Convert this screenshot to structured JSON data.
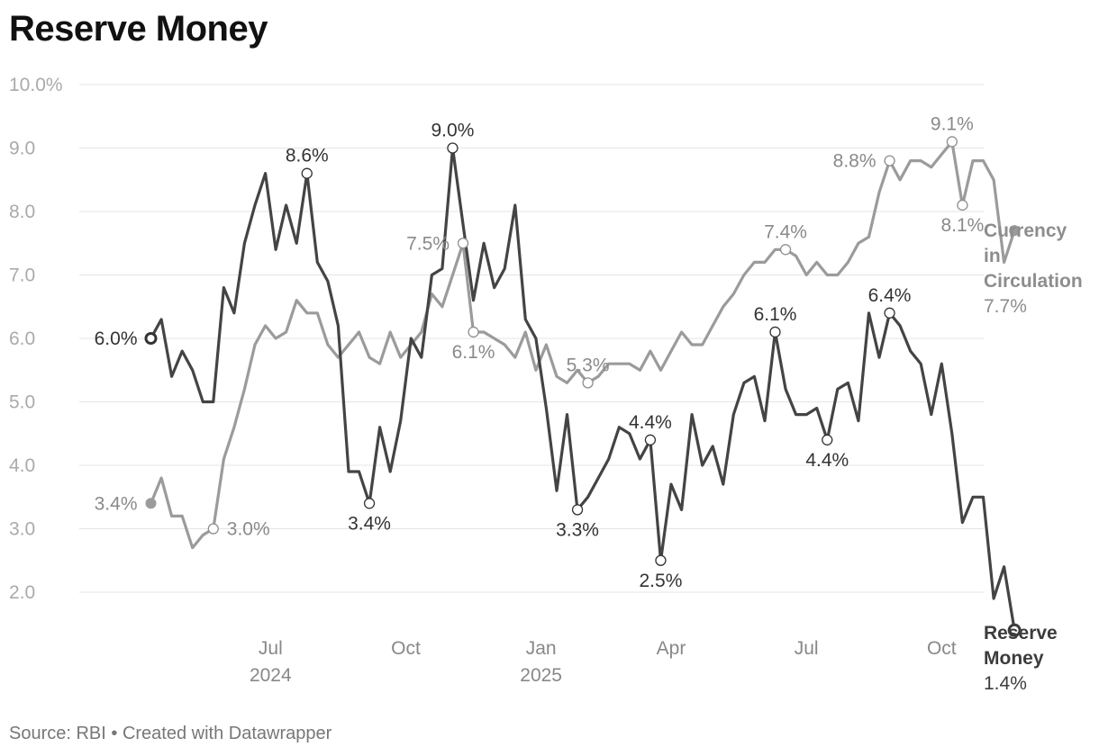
{
  "page": {
    "title": "Reserve Money",
    "source": "Source: RBI • Created with Datawrapper"
  },
  "chart_data": {
    "type": "line",
    "title": "Reserve Money",
    "ylim": [
      1.5,
      10
    ],
    "yticks": [
      2,
      3,
      4,
      5,
      6,
      7,
      8,
      9,
      10
    ],
    "ytick_labels": [
      "2.0",
      "3.0",
      "4.0",
      "5.0",
      "6.0",
      "7.0",
      "8.0",
      "9.0",
      "10.0%"
    ],
    "grid": true,
    "x_axis": {
      "unit": "weeks since start of series (mid-Mar 2024)",
      "range": [
        0,
        86
      ],
      "ticks": [
        {
          "x": 11.5,
          "label": "Jul",
          "year": "2024"
        },
        {
          "x": 24.5,
          "label": "Oct",
          "year": ""
        },
        {
          "x": 37.5,
          "label": "Jan",
          "year": "2025"
        },
        {
          "x": 50,
          "label": "Apr",
          "year": ""
        },
        {
          "x": 63,
          "label": "Jul",
          "year": ""
        },
        {
          "x": 76,
          "label": "Oct",
          "year": ""
        }
      ]
    },
    "series": [
      {
        "name": "Currency in Circulation",
        "name_lines": [
          "Currency",
          "in",
          "Circulation"
        ],
        "last_label": "7.7%",
        "color": "#9b9b9b",
        "points": [
          [
            0,
            3.4
          ],
          [
            1,
            3.8
          ],
          [
            2,
            3.2
          ],
          [
            3,
            3.2
          ],
          [
            4,
            2.7
          ],
          [
            5,
            2.9
          ],
          [
            6,
            3.0
          ],
          [
            7,
            4.1
          ],
          [
            8,
            4.6
          ],
          [
            9,
            5.2
          ],
          [
            10,
            5.9
          ],
          [
            11,
            6.2
          ],
          [
            12,
            6.0
          ],
          [
            13,
            6.1
          ],
          [
            14,
            6.6
          ],
          [
            15,
            6.4
          ],
          [
            16,
            6.4
          ],
          [
            17,
            5.9
          ],
          [
            18,
            5.7
          ],
          [
            19,
            5.9
          ],
          [
            20,
            6.1
          ],
          [
            21,
            5.7
          ],
          [
            22,
            5.6
          ],
          [
            23,
            6.1
          ],
          [
            24,
            5.7
          ],
          [
            25,
            5.9
          ],
          [
            26,
            6.1
          ],
          [
            27,
            6.7
          ],
          [
            28,
            6.5
          ],
          [
            29,
            7.0
          ],
          [
            30,
            7.5
          ],
          [
            31,
            6.1
          ],
          [
            32,
            6.1
          ],
          [
            33,
            6.0
          ],
          [
            34,
            5.9
          ],
          [
            35,
            5.7
          ],
          [
            36,
            6.1
          ],
          [
            37,
            5.5
          ],
          [
            38,
            5.9
          ],
          [
            39,
            5.4
          ],
          [
            40,
            5.3
          ],
          [
            41,
            5.5
          ],
          [
            42,
            5.3
          ],
          [
            43,
            5.4
          ],
          [
            44,
            5.6
          ],
          [
            45,
            5.6
          ],
          [
            46,
            5.6
          ],
          [
            47,
            5.5
          ],
          [
            48,
            5.8
          ],
          [
            49,
            5.5
          ],
          [
            50,
            5.8
          ],
          [
            51,
            6.1
          ],
          [
            52,
            5.9
          ],
          [
            53,
            5.9
          ],
          [
            54,
            6.2
          ],
          [
            55,
            6.5
          ],
          [
            56,
            6.7
          ],
          [
            57,
            7.0
          ],
          [
            58,
            7.2
          ],
          [
            59,
            7.2
          ],
          [
            60,
            7.4
          ],
          [
            61,
            7.4
          ],
          [
            62,
            7.3
          ],
          [
            63,
            7.0
          ],
          [
            64,
            7.2
          ],
          [
            65,
            7.0
          ],
          [
            66,
            7.0
          ],
          [
            67,
            7.2
          ],
          [
            68,
            7.5
          ],
          [
            69,
            7.6
          ],
          [
            70,
            8.3
          ],
          [
            71,
            8.8
          ],
          [
            72,
            8.5
          ],
          [
            73,
            8.8
          ],
          [
            74,
            8.8
          ],
          [
            75,
            8.7
          ],
          [
            76,
            8.9
          ],
          [
            77,
            9.1
          ],
          [
            78,
            8.1
          ],
          [
            79,
            8.8
          ],
          [
            80,
            8.8
          ],
          [
            81,
            8.5
          ],
          [
            82,
            7.2
          ],
          [
            83,
            7.7
          ]
        ],
        "annotations": [
          {
            "x": 0,
            "y": 3.4,
            "label": "3.4%",
            "pos": "left"
          },
          {
            "x": 6,
            "y": 3.0,
            "label": "3.0%",
            "pos": "right"
          },
          {
            "x": 30,
            "y": 7.5,
            "label": "7.5%",
            "pos": "left"
          },
          {
            "x": 31,
            "y": 6.1,
            "label": "6.1%",
            "pos": "below"
          },
          {
            "x": 42,
            "y": 5.3,
            "label": "5.3%",
            "pos": "above"
          },
          {
            "x": 61,
            "y": 7.4,
            "label": "7.4%",
            "pos": "above"
          },
          {
            "x": 71,
            "y": 8.8,
            "label": "8.8%",
            "pos": "left"
          },
          {
            "x": 77,
            "y": 9.1,
            "label": "9.1%",
            "pos": "above"
          },
          {
            "x": 78,
            "y": 8.1,
            "label": "8.1%",
            "pos": "below"
          }
        ]
      },
      {
        "name": "Reserve Money",
        "name_lines": [
          "Reserve",
          "Money"
        ],
        "last_label": "1.4%",
        "color": "#444444",
        "points": [
          [
            0,
            6.0
          ],
          [
            1,
            6.3
          ],
          [
            2,
            5.4
          ],
          [
            3,
            5.8
          ],
          [
            4,
            5.5
          ],
          [
            5,
            5.0
          ],
          [
            6,
            5.0
          ],
          [
            7,
            6.8
          ],
          [
            8,
            6.4
          ],
          [
            9,
            7.5
          ],
          [
            10,
            8.1
          ],
          [
            11,
            8.6
          ],
          [
            12,
            7.4
          ],
          [
            13,
            8.1
          ],
          [
            14,
            7.5
          ],
          [
            15,
            8.6
          ],
          [
            16,
            7.2
          ],
          [
            17,
            6.9
          ],
          [
            18,
            6.2
          ],
          [
            19,
            3.9
          ],
          [
            20,
            3.9
          ],
          [
            21,
            3.4
          ],
          [
            22,
            4.6
          ],
          [
            23,
            3.9
          ],
          [
            24,
            4.7
          ],
          [
            25,
            6.0
          ],
          [
            26,
            5.7
          ],
          [
            27,
            7.0
          ],
          [
            28,
            7.1
          ],
          [
            29,
            9.0
          ],
          [
            30,
            7.8
          ],
          [
            31,
            6.6
          ],
          [
            32,
            7.5
          ],
          [
            33,
            6.8
          ],
          [
            34,
            7.1
          ],
          [
            35,
            8.1
          ],
          [
            36,
            6.3
          ],
          [
            37,
            6.0
          ],
          [
            38,
            4.9
          ],
          [
            39,
            3.6
          ],
          [
            40,
            4.8
          ],
          [
            41,
            3.3
          ],
          [
            42,
            3.5
          ],
          [
            43,
            3.8
          ],
          [
            44,
            4.1
          ],
          [
            45,
            4.6
          ],
          [
            46,
            4.5
          ],
          [
            47,
            4.1
          ],
          [
            48,
            4.4
          ],
          [
            49,
            2.5
          ],
          [
            50,
            3.7
          ],
          [
            51,
            3.3
          ],
          [
            52,
            4.8
          ],
          [
            53,
            4.0
          ],
          [
            54,
            4.3
          ],
          [
            55,
            3.7
          ],
          [
            56,
            4.8
          ],
          [
            57,
            5.3
          ],
          [
            58,
            5.4
          ],
          [
            59,
            4.7
          ],
          [
            60,
            6.1
          ],
          [
            61,
            5.2
          ],
          [
            62,
            4.8
          ],
          [
            63,
            4.8
          ],
          [
            64,
            4.9
          ],
          [
            65,
            4.4
          ],
          [
            66,
            5.2
          ],
          [
            67,
            5.3
          ],
          [
            68,
            4.7
          ],
          [
            69,
            6.4
          ],
          [
            70,
            5.7
          ],
          [
            71,
            6.4
          ],
          [
            72,
            6.2
          ],
          [
            73,
            5.8
          ],
          [
            74,
            5.6
          ],
          [
            75,
            4.8
          ],
          [
            76,
            5.6
          ],
          [
            77,
            4.5
          ],
          [
            78,
            3.1
          ],
          [
            79,
            3.5
          ],
          [
            80,
            3.5
          ],
          [
            81,
            1.9
          ],
          [
            82,
            2.4
          ],
          [
            83,
            1.4
          ]
        ],
        "annotations": [
          {
            "x": 0,
            "y": 6.0,
            "label": "6.0%",
            "pos": "left"
          },
          {
            "x": 15,
            "y": 8.6,
            "label": "8.6%",
            "pos": "above"
          },
          {
            "x": 21,
            "y": 3.4,
            "label": "3.4%",
            "pos": "below"
          },
          {
            "x": 29,
            "y": 9.0,
            "label": "9.0%",
            "pos": "above"
          },
          {
            "x": 41,
            "y": 3.3,
            "label": "3.3%",
            "pos": "below"
          },
          {
            "x": 48,
            "y": 4.4,
            "label": "4.4%",
            "pos": "above"
          },
          {
            "x": 49,
            "y": 2.5,
            "label": "2.5%",
            "pos": "below"
          },
          {
            "x": 60,
            "y": 6.1,
            "label": "6.1%",
            "pos": "above"
          },
          {
            "x": 65,
            "y": 4.4,
            "label": "4.4%",
            "pos": "below"
          },
          {
            "x": 71,
            "y": 6.4,
            "label": "6.4%",
            "pos": "above"
          }
        ]
      }
    ]
  }
}
